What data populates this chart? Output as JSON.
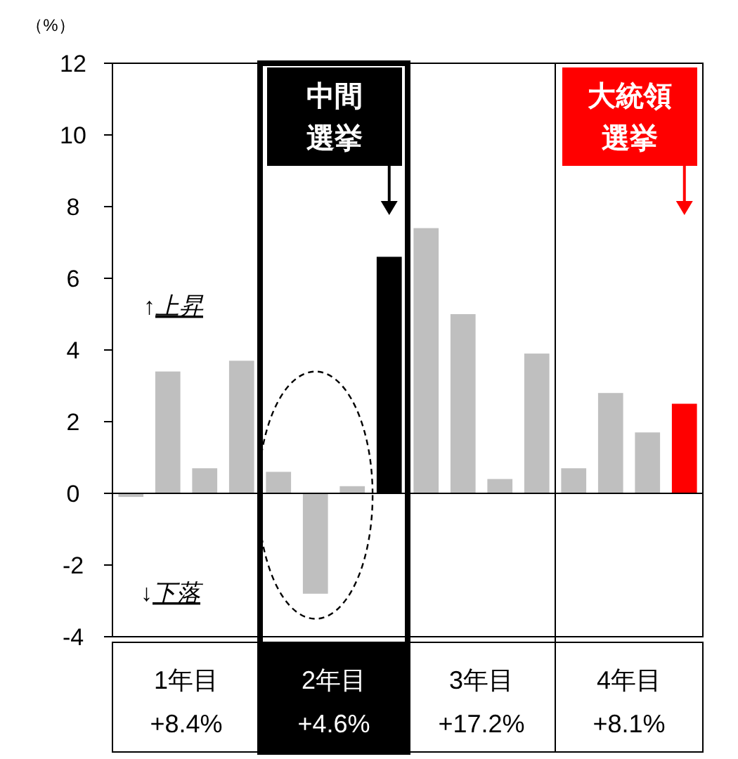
{
  "chart_data": {
    "type": "bar",
    "ylabel": "（%）",
    "categories": [
      null,
      null,
      null,
      null,
      null,
      null,
      null,
      null,
      null,
      null,
      null,
      null,
      null,
      null,
      null,
      null
    ],
    "values": [
      -0.1,
      3.4,
      0.7,
      3.7,
      0.6,
      -2.8,
      0.2,
      6.6,
      7.4,
      5.0,
      0.4,
      3.9,
      0.7,
      2.8,
      1.7,
      2.5
    ],
    "colors": [
      "#bfbfbf",
      "#bfbfbf",
      "#bfbfbf",
      "#bfbfbf",
      "#bfbfbf",
      "#bfbfbf",
      "#bfbfbf",
      "#000000",
      "#bfbfbf",
      "#bfbfbf",
      "#bfbfbf",
      "#bfbfbf",
      "#bfbfbf",
      "#bfbfbf",
      "#bfbfbf",
      "#ff0000"
    ],
    "ylim": [
      -4,
      12
    ],
    "yticks": [
      -4,
      -2,
      0,
      2,
      4,
      6,
      8,
      10,
      12
    ],
    "annotations": [
      "1年目",
      "+8.4%",
      "2年目",
      "+4.6%",
      "3年目",
      "+17.2%",
      "4年目",
      "+8.1%",
      "中間選挙",
      "大統領選挙",
      "↑*上昇*",
      "↓*下落*"
    ]
  }
}
